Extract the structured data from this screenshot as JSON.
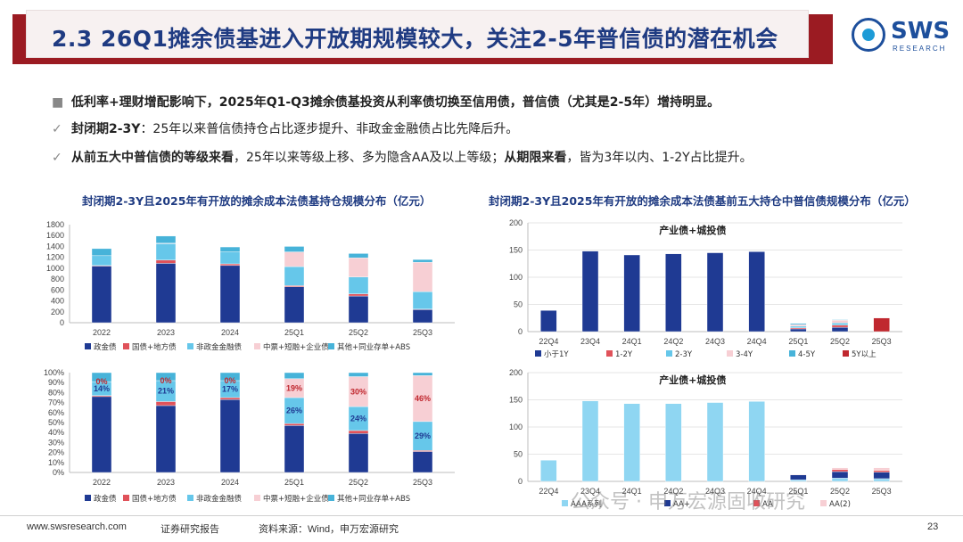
{
  "header": {
    "title": "2.3 26Q1摊余债基进入开放期规模较大，关注2-5年普信债的潜在机会",
    "logo_text": "SWS",
    "logo_sub": "RESEARCH"
  },
  "bullets": {
    "b1": "低利率+理财增配影响下，2025年Q1-Q3摊余债基投资从利率债切换至信用债，普信债（尤其是2-5年）增持明显。",
    "b2_bold": "封闭期2-3Y",
    "b2_rest": "：25年以来普信债持仓占比逐步提升、非政金金融债占比先降后升。",
    "b3_bold1": "从前五大中普信债的等级来看",
    "b3_mid": "，25年以来等级上移、多为隐含AA及以上等级；",
    "b3_bold2": "从期限来看",
    "b3_rest": "，皆为3年以内、1-2Y占比提升。",
    "mark_square": "■",
    "mark_check": "✓"
  },
  "chart_titles": {
    "left": "封闭期2-3Y且2025年有开放的摊余成本法债基持仓规模分布（亿元）",
    "right": "封闭期2-3Y且2025年有开放的摊余成本法债基前五大持仓中普信债规模分布（亿元）"
  },
  "colors": {
    "dark_blue": "#1f3a93",
    "red": "#e0525a",
    "light_blue": "#66c7ea",
    "pink": "#f7cfd4",
    "teal": "#47b3d9",
    "dark_red": "#c0282f",
    "sky": "#8fd6f2"
  },
  "chart_data": [
    {
      "id": "holding_scale",
      "type": "bar",
      "stacked": true,
      "categories": [
        "2022",
        "2023",
        "2024",
        "25Q1",
        "25Q2",
        "25Q3"
      ],
      "ylim": [
        0,
        1800
      ],
      "yticks": [
        "0",
        "200",
        "400",
        "600",
        "800",
        "1000",
        "1200",
        "1400",
        "1600",
        "1800"
      ],
      "series": [
        {
          "name": "政金债",
          "color_key": "dark_blue",
          "values": [
            1040,
            1090,
            1050,
            660,
            490,
            240
          ]
        },
        {
          "name": "国债+地方债",
          "color_key": "red",
          "values": [
            10,
            60,
            30,
            20,
            40,
            10
          ]
        },
        {
          "name": "非政金金融债",
          "color_key": "light_blue",
          "values": [
            180,
            300,
            220,
            350,
            310,
            320
          ]
        },
        {
          "name": "中票+短融+企业债",
          "color_key": "pink",
          "values": [
            0,
            10,
            0,
            270,
            350,
            540
          ]
        },
        {
          "name": "其他+同业存单+ABS",
          "color_key": "teal",
          "values": [
            130,
            130,
            90,
            100,
            80,
            50
          ]
        }
      ]
    },
    {
      "id": "holding_pct",
      "type": "bar",
      "stacked": true,
      "categories": [
        "2022",
        "2023",
        "2024",
        "25Q1",
        "25Q2",
        "25Q3"
      ],
      "ylim": [
        0,
        100
      ],
      "yticks": [
        "0%",
        "10%",
        "20%",
        "30%",
        "40%",
        "50%",
        "60%",
        "70%",
        "80%",
        "90%",
        "100%"
      ],
      "series": [
        {
          "name": "政金债",
          "color_key": "dark_blue",
          "values": [
            76,
            67,
            73,
            47,
            39,
            21
          ]
        },
        {
          "name": "国债+地方债",
          "color_key": "red",
          "values": [
            1,
            4,
            2,
            2,
            3,
            1
          ]
        },
        {
          "name": "非政金金融债",
          "color_key": "light_blue",
          "values": [
            14,
            21,
            17,
            26,
            24,
            29
          ]
        },
        {
          "name": "中票+短融+企业债",
          "color_key": "pink",
          "values": [
            0,
            0,
            0,
            19,
            30,
            46
          ]
        },
        {
          "name": "其他+同业存单+ABS",
          "color_key": "teal",
          "values": [
            9,
            8,
            8,
            6,
            4,
            3
          ]
        }
      ],
      "data_labels": [
        {
          "series": 2,
          "labels": [
            "14%",
            "21%",
            "17%",
            "26%",
            "24%",
            "29%"
          ]
        },
        {
          "series": 3,
          "labels": [
            "0%",
            "0%",
            "0%",
            "19%",
            "30%",
            "46%"
          ]
        }
      ]
    },
    {
      "id": "term_dist",
      "type": "bar",
      "stacked": true,
      "subtitle": "产业债+城投债",
      "categories": [
        "22Q4",
        "23Q4",
        "24Q1",
        "24Q2",
        "24Q3",
        "24Q4",
        "25Q1",
        "25Q2",
        "25Q3"
      ],
      "ylim": [
        0,
        200
      ],
      "yticks": [
        "0",
        "50",
        "100",
        "150",
        "200"
      ],
      "series": [
        {
          "name": "小于1Y",
          "color_key": "dark_blue",
          "values": [
            39,
            148,
            141,
            143,
            145,
            147,
            5,
            8,
            0
          ]
        },
        {
          "name": "1-2Y",
          "color_key": "red",
          "values": [
            0,
            0,
            0,
            0,
            0,
            0,
            2,
            4,
            0
          ]
        },
        {
          "name": "2-3Y",
          "color_key": "light_blue",
          "values": [
            0,
            0,
            0,
            0,
            0,
            0,
            3,
            4,
            0
          ]
        },
        {
          "name": "3-4Y",
          "color_key": "pink",
          "values": [
            0,
            0,
            0,
            0,
            0,
            0,
            3,
            5,
            0
          ]
        },
        {
          "name": "4-5Y",
          "color_key": "teal",
          "values": [
            0,
            0,
            0,
            0,
            0,
            0,
            2,
            1,
            0
          ]
        },
        {
          "name": "5Y以上",
          "color_key": "dark_red",
          "values": [
            0,
            0,
            0,
            0,
            0,
            0,
            0,
            0,
            25
          ]
        }
      ]
    },
    {
      "id": "rating_dist",
      "type": "bar",
      "stacked": true,
      "subtitle": "产业债+城投债",
      "categories": [
        "22Q4",
        "23Q4",
        "24Q1",
        "24Q2",
        "24Q3",
        "24Q4",
        "25Q1",
        "25Q2",
        "25Q3"
      ],
      "ylim": [
        0,
        200
      ],
      "yticks": [
        "0",
        "50",
        "100",
        "150",
        "200"
      ],
      "series": [
        {
          "name": "AAA系列",
          "color_key": "sky",
          "values": [
            39,
            148,
            143,
            143,
            145,
            147,
            3,
            6,
            5
          ]
        },
        {
          "name": "AA+",
          "color_key": "dark_blue",
          "values": [
            0,
            0,
            0,
            0,
            0,
            0,
            9,
            12,
            12
          ]
        },
        {
          "name": "AA",
          "color_key": "red",
          "values": [
            0,
            0,
            0,
            0,
            0,
            0,
            0,
            4,
            3
          ]
        },
        {
          "name": "AA(2)",
          "color_key": "pink",
          "values": [
            0,
            0,
            0,
            0,
            0,
            0,
            1,
            3,
            5
          ]
        }
      ]
    }
  ],
  "watermark": "公众号 · 申万宏源固收研究",
  "footer": {
    "site": "www.swsresearch.com",
    "report": "证券研究报告",
    "source": "资料来源：Wind，申万宏源研究",
    "page": "23"
  }
}
